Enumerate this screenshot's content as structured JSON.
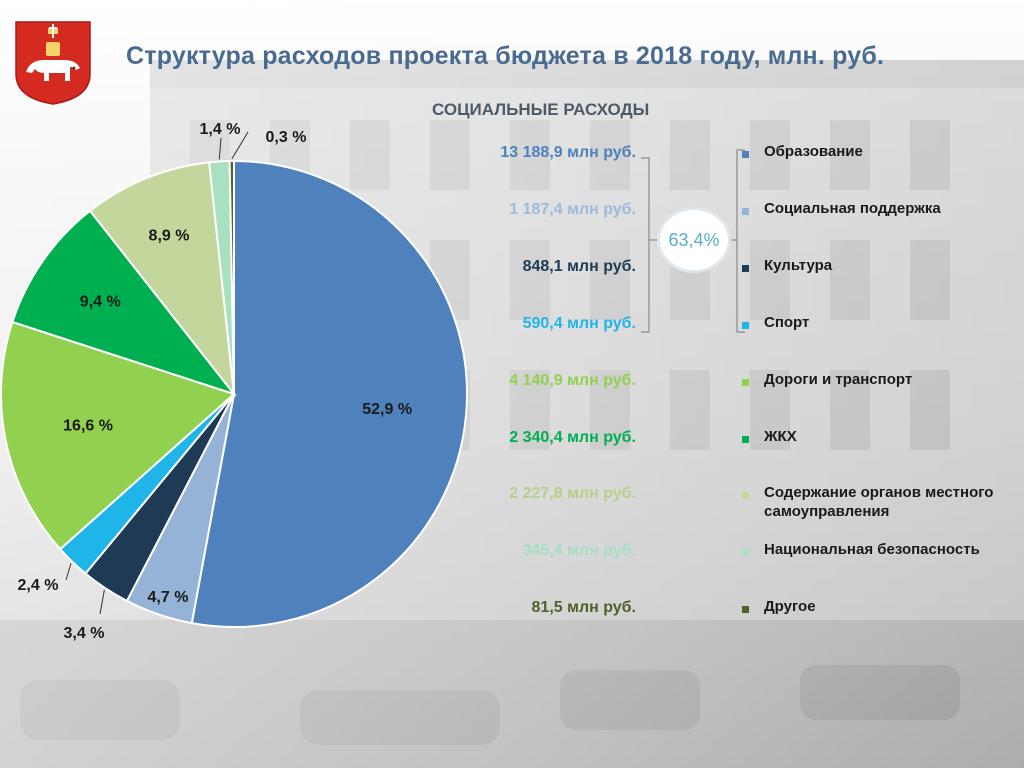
{
  "header": {
    "title": "Структура расходов проекта бюджета в 2018 году, млн. руб.",
    "subtitle": "СОЦИАЛЬНЫЕ РАСХОДЫ",
    "emblem": "perm-coat-of-arms-icon"
  },
  "social_share": "63,4%",
  "colors": {
    "title": "#4a6b91",
    "share_circle_text": "#5aaec6"
  },
  "chart_data": {
    "type": "pie",
    "title": "Структура расходов проекта бюджета в 2018 году, млн. руб.",
    "slices": [
      {
        "name": "Образование",
        "value": 52.9,
        "label": "52,9 %",
        "amount": "13 188,9 млн руб.",
        "color": "#4f81bd",
        "amount_color": "#4f81bd"
      },
      {
        "name": "Социальная поддержка",
        "value": 4.7,
        "label": "4,7 %",
        "amount": "1 187,4 млн руб.",
        "color": "#95b3d7",
        "amount_color": "#9db9dc"
      },
      {
        "name": "Культура",
        "value": 3.4,
        "label": "3,4 %",
        "amount": "848,1 млн руб.",
        "color": "#1f3a54",
        "amount_color": "#1f3a54"
      },
      {
        "name": "Спорт",
        "value": 2.4,
        "label": "2,4 %",
        "amount": "590,4 млн руб.",
        "color": "#1fb5e8",
        "amount_color": "#1fb5e8"
      },
      {
        "name": "Дороги и транспорт",
        "value": 16.6,
        "label": "16,6 %",
        "amount": "4 140,9 млн руб.",
        "color": "#92d050",
        "amount_color": "#92d050"
      },
      {
        "name": "ЖКХ",
        "value": 9.4,
        "label": "9,4 %",
        "amount": "2 340,4 млн руб.",
        "color": "#00b050",
        "amount_color": "#00b050"
      },
      {
        "name": "Содержание органов местного самоуправления",
        "value": 8.9,
        "label": "8,9 %",
        "amount": "2 227,8 млн руб.",
        "color": "#c3d69b",
        "amount_color": "#b6cf8a"
      },
      {
        "name": "Национальная безопасность",
        "value": 1.4,
        "label": "1,4 %",
        "amount": "345,4 млн руб.",
        "color": "#a8e0c0",
        "amount_color": "#a3dfc0"
      },
      {
        "name": "Другое",
        "value": 0.3,
        "label": "0,3 %",
        "amount": "81,5 млн руб.",
        "color": "#4f6228",
        "amount_color": "#4f6228"
      }
    ],
    "legend": "right",
    "grid": false
  }
}
